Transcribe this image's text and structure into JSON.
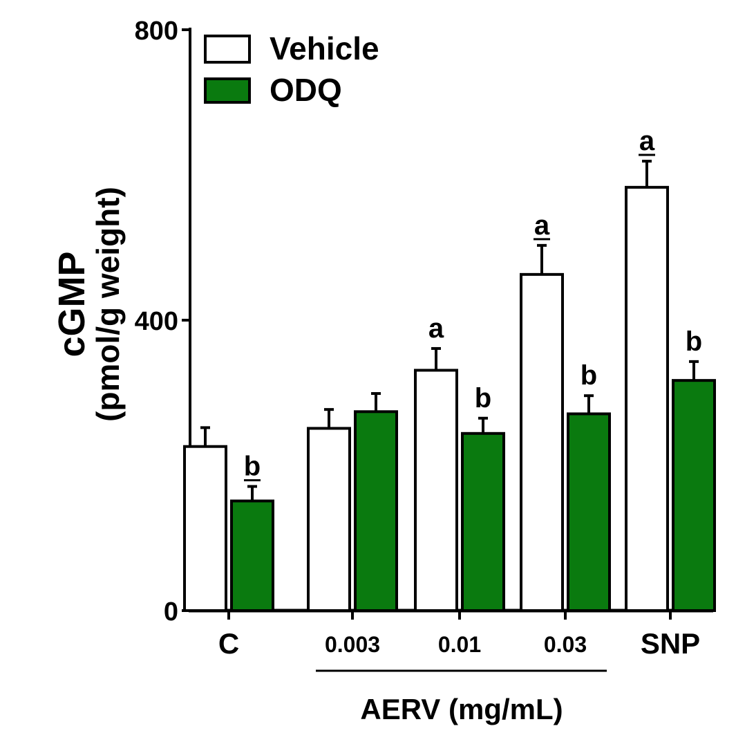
{
  "chart_data": {
    "type": "bar",
    "ylabel_line1": "cGMP",
    "ylabel_line2": "(pmol/g weight)",
    "xlabel": "AERV (mg/mL)",
    "ylim": [
      0,
      800
    ],
    "yticks": [
      0,
      400,
      800
    ],
    "categories": [
      "C",
      "0.003",
      "0.01",
      "0.03",
      "SNP"
    ],
    "legend_position": "top-left",
    "series": [
      {
        "name": "Vehicle",
        "color": "#ffffff",
        "values": [
          226,
          251,
          331,
          463,
          583
        ],
        "errors": [
          26,
          26,
          30,
          40,
          36
        ],
        "annotations": [
          "",
          "",
          "a",
          "a",
          "a"
        ],
        "annotation_underlined": [
          false,
          false,
          false,
          true,
          true
        ]
      },
      {
        "name": "ODQ",
        "color": "#0a7a0f",
        "values": [
          151,
          274,
          244,
          271,
          317
        ],
        "errors": [
          20,
          25,
          21,
          25,
          26
        ],
        "annotations": [
          "b",
          "",
          "b",
          "b",
          "b"
        ],
        "annotation_underlined": [
          true,
          false,
          false,
          false,
          false
        ]
      }
    ]
  }
}
